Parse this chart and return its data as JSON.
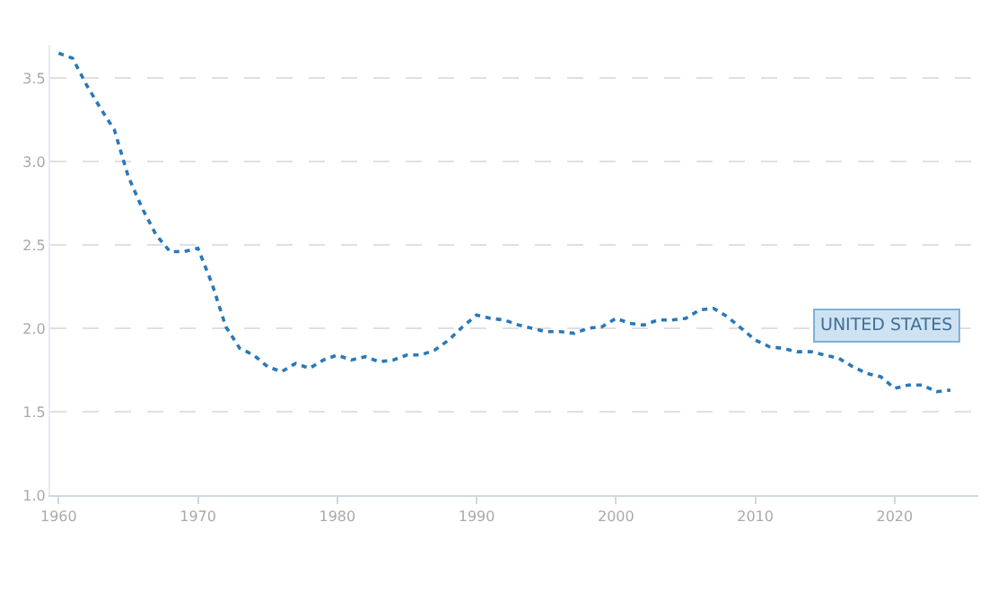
{
  "chart_data": {
    "type": "line",
    "x": [
      1960,
      1961,
      1962,
      1963,
      1964,
      1965,
      1966,
      1967,
      1968,
      1969,
      1970,
      1971,
      1972,
      1973,
      1974,
      1975,
      1976,
      1977,
      1978,
      1979,
      1980,
      1981,
      1982,
      1983,
      1984,
      1985,
      1986,
      1987,
      1988,
      1989,
      1990,
      1991,
      1992,
      1993,
      1994,
      1995,
      1996,
      1997,
      1998,
      1999,
      2000,
      2001,
      2002,
      2003,
      2004,
      2005,
      2006,
      2007,
      2008,
      2009,
      2010,
      2011,
      2012,
      2013,
      2014,
      2015,
      2016,
      2017,
      2018,
      2019,
      2020,
      2021,
      2022,
      2023,
      2024
    ],
    "series": [
      {
        "name": "UNITED STATES",
        "color": "#2a78b7",
        "values": [
          3.65,
          3.62,
          3.46,
          3.32,
          3.19,
          2.91,
          2.72,
          2.56,
          2.46,
          2.46,
          2.48,
          2.27,
          2.01,
          1.88,
          1.84,
          1.77,
          1.74,
          1.79,
          1.76,
          1.81,
          1.84,
          1.81,
          1.83,
          1.8,
          1.81,
          1.84,
          1.84,
          1.87,
          1.93,
          2.01,
          2.08,
          2.06,
          2.05,
          2.02,
          2.0,
          1.98,
          1.98,
          1.97,
          2.0,
          2.01,
          2.06,
          2.03,
          2.02,
          2.05,
          2.05,
          2.06,
          2.11,
          2.12,
          2.07,
          2.0,
          1.93,
          1.89,
          1.88,
          1.86,
          1.86,
          1.84,
          1.82,
          1.77,
          1.73,
          1.71,
          1.64,
          1.66,
          1.66,
          1.62,
          1.63
        ]
      }
    ],
    "xlim": [
      1959.4,
      2026
    ],
    "xticks": [
      1960,
      1970,
      1980,
      1990,
      2000,
      2010,
      2020
    ],
    "ylim": [
      1.0,
      3.7
    ],
    "yticks": [
      {
        "value": 1.0,
        "label": "1.0"
      },
      {
        "value": 1.5,
        "label": "1.5"
      },
      {
        "value": 2.0,
        "label": "2.0"
      },
      {
        "value": 2.5,
        "label": "2.5"
      },
      {
        "value": 3.0,
        "label": "3.0"
      },
      {
        "value": 3.5,
        "label": "3.5"
      }
    ],
    "grid": "y",
    "line_style": "dotted",
    "marker": "none",
    "legend": false
  }
}
